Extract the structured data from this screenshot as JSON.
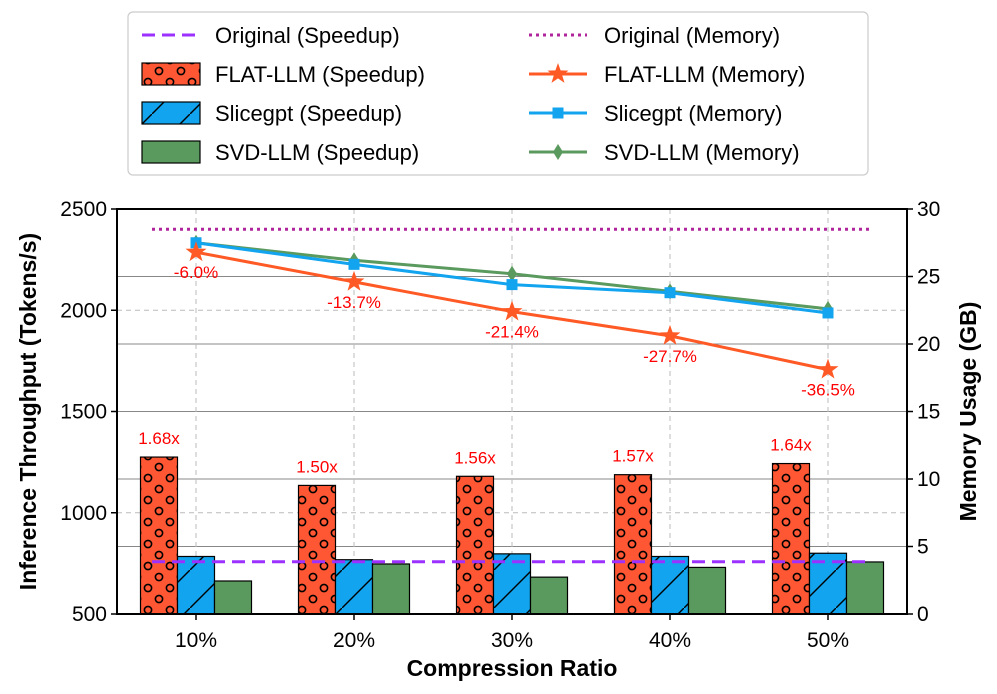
{
  "chart_data": {
    "type": "bar+line",
    "categories": [
      "10%",
      "20%",
      "30%",
      "40%",
      "50%"
    ],
    "xlabel": "Compression Ratio",
    "ylabel_left": "Inference Throughput (Tokens/s)",
    "ylabel_right": "Memory Usage (GB)",
    "ylim_left": [
      500,
      2500
    ],
    "yticks_left": [
      500,
      1000,
      1500,
      2000,
      2500
    ],
    "ylim_right": [
      0,
      30
    ],
    "yticks_right": [
      0,
      5,
      10,
      15,
      20,
      25,
      30
    ],
    "grid": true,
    "legend_position": "top-center",
    "bar_series": [
      {
        "name": "FLAT-LLM (Speedup)",
        "values": [
          1275,
          1135,
          1180,
          1188,
          1243
        ],
        "color": "#ff5733",
        "hatch": "circles"
      },
      {
        "name": "Slicegpt (Speedup)",
        "values": [
          784,
          768,
          797,
          784,
          800
        ],
        "color": "#12a4ee",
        "hatch": "slash"
      },
      {
        "name": "SVD-LLM (Speedup)",
        "values": [
          663,
          747,
          682,
          730,
          757
        ],
        "color": "#5b9a5e",
        "hatch": "none"
      }
    ],
    "speedup_labels": [
      "1.68x",
      "1.50x",
      "1.56x",
      "1.57x",
      "1.64x"
    ],
    "original_speedup": {
      "name": "Original (Speedup)",
      "value": 758,
      "color": "#9b30ff"
    },
    "original_memory": {
      "name": "Original (Memory)",
      "value": 28.5,
      "color": "#b0259c"
    },
    "line_series": [
      {
        "name": "FLAT-LLM (Memory)",
        "values": [
          26.8,
          24.6,
          22.4,
          20.6,
          18.1
        ],
        "color": "#ff5a26",
        "marker": "star"
      },
      {
        "name": "Slicegpt (Memory)",
        "values": [
          27.5,
          25.9,
          24.4,
          23.8,
          22.3
        ],
        "color": "#12a4ee",
        "marker": "square"
      },
      {
        "name": "SVD-LLM (Memory)",
        "values": [
          27.5,
          26.2,
          25.2,
          23.9,
          22.6
        ],
        "color": "#5b9a5e",
        "marker": "diamond"
      }
    ],
    "memory_reduction_labels": [
      "-6.0%",
      "-13.7%",
      "-21.4%",
      "-27.7%",
      "-36.5%"
    ]
  }
}
